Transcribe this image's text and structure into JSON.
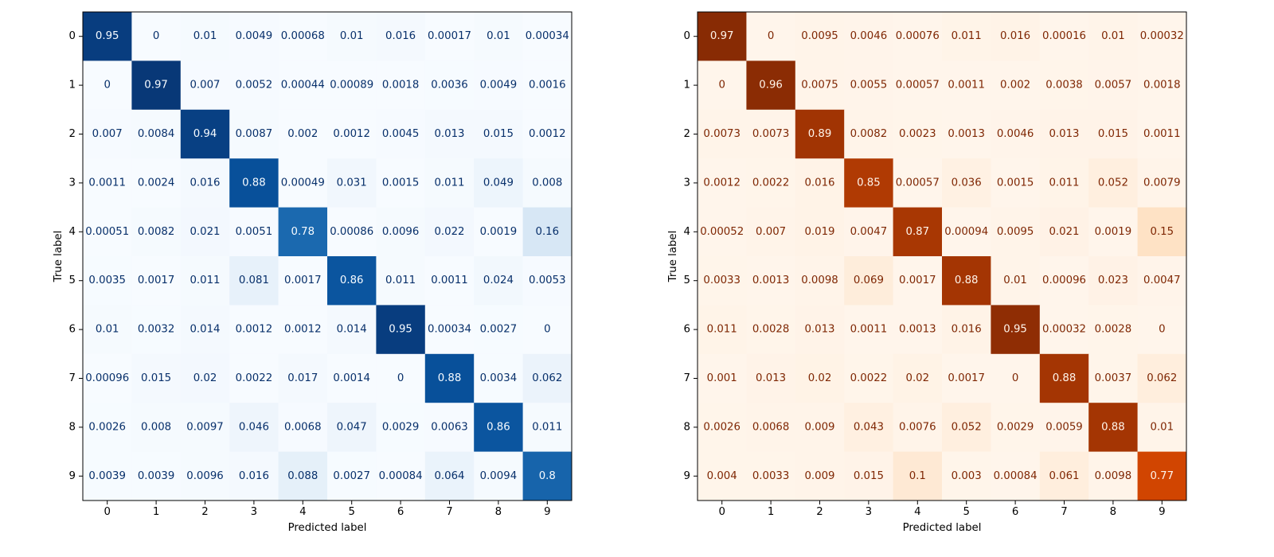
{
  "chart_data": [
    {
      "type": "heatmap",
      "colormap": "Blues",
      "xlabel": "Predicted label",
      "ylabel": "True label",
      "x_ticks": [
        "0",
        "1",
        "2",
        "3",
        "4",
        "5",
        "6",
        "7",
        "8",
        "9"
      ],
      "y_ticks": [
        "0",
        "1",
        "2",
        "3",
        "4",
        "5",
        "6",
        "7",
        "8",
        "9"
      ],
      "value_range": [
        0,
        1
      ],
      "values": [
        [
          "0.95",
          "0",
          "0.01",
          "0.0049",
          "0.00068",
          "0.01",
          "0.016",
          "0.00017",
          "0.01",
          "0.00034"
        ],
        [
          "0",
          "0.97",
          "0.007",
          "0.0052",
          "0.00044",
          "0.00089",
          "0.0018",
          "0.0036",
          "0.0049",
          "0.0016"
        ],
        [
          "0.007",
          "0.0084",
          "0.94",
          "0.0087",
          "0.002",
          "0.0012",
          "0.0045",
          "0.013",
          "0.015",
          "0.0012"
        ],
        [
          "0.0011",
          "0.0024",
          "0.016",
          "0.88",
          "0.00049",
          "0.031",
          "0.0015",
          "0.011",
          "0.049",
          "0.008"
        ],
        [
          "0.00051",
          "0.0082",
          "0.021",
          "0.0051",
          "0.78",
          "0.00086",
          "0.0096",
          "0.022",
          "0.0019",
          "0.16"
        ],
        [
          "0.0035",
          "0.0017",
          "0.011",
          "0.081",
          "0.0017",
          "0.86",
          "0.011",
          "0.0011",
          "0.024",
          "0.0053"
        ],
        [
          "0.01",
          "0.0032",
          "0.014",
          "0.0012",
          "0.0012",
          "0.014",
          "0.95",
          "0.00034",
          "0.0027",
          "0"
        ],
        [
          "0.00096",
          "0.015",
          "0.02",
          "0.0022",
          "0.017",
          "0.0014",
          "0",
          "0.88",
          "0.0034",
          "0.062"
        ],
        [
          "0.0026",
          "0.008",
          "0.0097",
          "0.046",
          "0.0068",
          "0.047",
          "0.0029",
          "0.0063",
          "0.86",
          "0.011"
        ],
        [
          "0.0039",
          "0.0039",
          "0.0096",
          "0.016",
          "0.088",
          "0.0027",
          "0.00084",
          "0.064",
          "0.0094",
          "0.8"
        ]
      ]
    },
    {
      "type": "heatmap",
      "colormap": "Oranges",
      "xlabel": "Predicted label",
      "ylabel": "True label",
      "x_ticks": [
        "0",
        "1",
        "2",
        "3",
        "4",
        "5",
        "6",
        "7",
        "8",
        "9"
      ],
      "y_ticks": [
        "0",
        "1",
        "2",
        "3",
        "4",
        "5",
        "6",
        "7",
        "8",
        "9"
      ],
      "value_range": [
        0,
        1
      ],
      "values": [
        [
          "0.97",
          "0",
          "0.0095",
          "0.0046",
          "0.00076",
          "0.011",
          "0.016",
          "0.00016",
          "0.01",
          "0.00032"
        ],
        [
          "0",
          "0.96",
          "0.0075",
          "0.0055",
          "0.00057",
          "0.0011",
          "0.002",
          "0.0038",
          "0.0057",
          "0.0018"
        ],
        [
          "0.0073",
          "0.0073",
          "0.89",
          "0.0082",
          "0.0023",
          "0.0013",
          "0.0046",
          "0.013",
          "0.015",
          "0.0011"
        ],
        [
          "0.0012",
          "0.0022",
          "0.016",
          "0.85",
          "0.00057",
          "0.036",
          "0.0015",
          "0.011",
          "0.052",
          "0.0079"
        ],
        [
          "0.00052",
          "0.007",
          "0.019",
          "0.0047",
          "0.87",
          "0.00094",
          "0.0095",
          "0.021",
          "0.0019",
          "0.15"
        ],
        [
          "0.0033",
          "0.0013",
          "0.0098",
          "0.069",
          "0.0017",
          "0.88",
          "0.01",
          "0.00096",
          "0.023",
          "0.0047"
        ],
        [
          "0.011",
          "0.0028",
          "0.013",
          "0.0011",
          "0.0013",
          "0.016",
          "0.95",
          "0.00032",
          "0.0028",
          "0"
        ],
        [
          "0.001",
          "0.013",
          "0.02",
          "0.0022",
          "0.02",
          "0.0017",
          "0",
          "0.88",
          "0.0037",
          "0.062"
        ],
        [
          "0.0026",
          "0.0068",
          "0.009",
          "0.043",
          "0.0076",
          "0.052",
          "0.0029",
          "0.0059",
          "0.88",
          "0.01"
        ],
        [
          "0.004",
          "0.0033",
          "0.009",
          "0.015",
          "0.1",
          "0.003",
          "0.00084",
          "0.061",
          "0.0098",
          "0.77"
        ]
      ]
    }
  ]
}
